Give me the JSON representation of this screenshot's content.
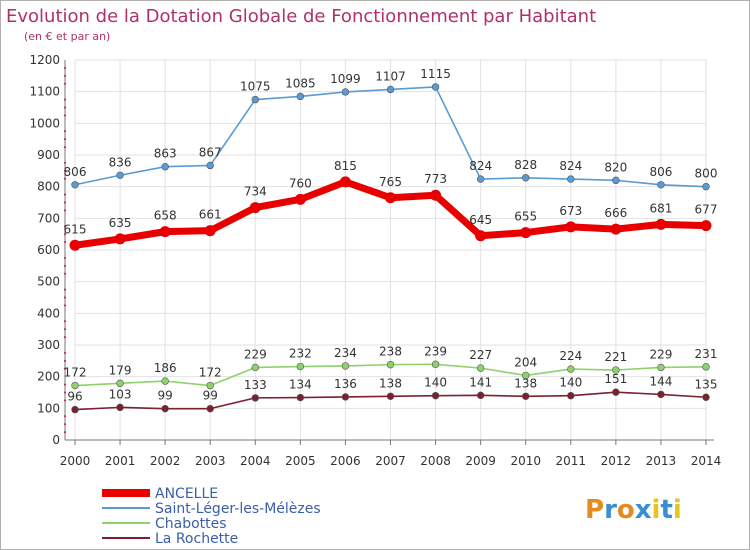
{
  "chart_data": {
    "type": "line",
    "title": "Evolution de la Dotation Globale de Fonctionnement par Habitant",
    "subtitle": "(en € et par an)",
    "x": [
      "2000",
      "2001",
      "2002",
      "2003",
      "2004",
      "2005",
      "2006",
      "2007",
      "2008",
      "2009",
      "2010",
      "2011",
      "2012",
      "2013",
      "2014"
    ],
    "ylim": [
      0,
      1200
    ],
    "yticks": [
      0,
      100,
      200,
      300,
      400,
      500,
      600,
      700,
      800,
      900,
      1000,
      1100,
      1200
    ],
    "grid": true,
    "legend_position": "bottom-left",
    "series": [
      {
        "name": "ANCELLE",
        "color": "#e80000",
        "values": [
          615,
          635,
          658,
          661,
          734,
          760,
          815,
          765,
          773,
          645,
          655,
          673,
          666,
          681,
          677
        ]
      },
      {
        "name": "Saint-Léger-les-Mélèzes",
        "color": "#5a9bd4",
        "values": [
          806,
          836,
          863,
          867,
          1075,
          1085,
          1099,
          1107,
          1115,
          824,
          828,
          824,
          820,
          806,
          800
        ]
      },
      {
        "name": "Chabottes",
        "color": "#8fd16a",
        "values": [
          172,
          179,
          186,
          172,
          229,
          232,
          234,
          238,
          239,
          227,
          204,
          224,
          221,
          229,
          231
        ]
      },
      {
        "name": "La Rochette",
        "color": "#7a2030",
        "values": [
          96,
          103,
          99,
          99,
          133,
          134,
          136,
          138,
          140,
          141,
          138,
          140,
          151,
          144,
          135
        ]
      }
    ]
  },
  "logo": {
    "text": "Proxiti"
  }
}
